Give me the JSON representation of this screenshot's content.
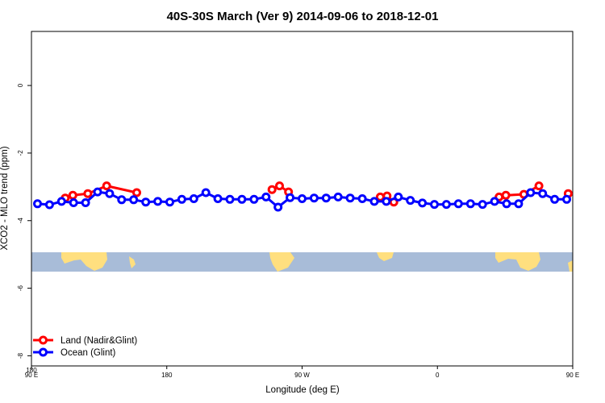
{
  "chart_data": {
    "type": "line",
    "title": "40S-30S March (Ver 9)   2014-09-06 to 2018-12-01",
    "xlabel": "Longitude (deg E)",
    "ylabel": "XCO2 - MLO trend (ppm)",
    "xlim": [
      0,
      360
    ],
    "ylim": [
      -8.3,
      1.6
    ],
    "x_ticks": [
      {
        "value": 0,
        "label": "90 E"
      },
      {
        "value": 90,
        "label": "180"
      },
      {
        "value": 180,
        "label": "90 W"
      },
      {
        "value": 270,
        "label": "0"
      },
      {
        "value": 360,
        "label": "90 E"
      }
    ],
    "x_ticks_2": [
      {
        "value": 0,
        "label": "180"
      }
    ],
    "y_ticks": [
      {
        "value": 0,
        "label": "0"
      },
      {
        "value": -2,
        "label": "-2"
      },
      {
        "value": -4,
        "label": "-4"
      },
      {
        "value": -6,
        "label": "-6"
      },
      {
        "value": -8,
        "label": "-8"
      }
    ],
    "grid": false,
    "legend_position": "bottom-left",
    "series": [
      {
        "name": "Land (Nadir&Glint)",
        "color": "#ff0000",
        "segments": [
          [
            [
              22.5,
              -3.33
            ],
            [
              27.5,
              -3.25
            ],
            [
              37.5,
              -3.2
            ],
            [
              50,
              -2.97
            ],
            [
              70,
              -3.17
            ]
          ],
          [
            [
              160,
              -3.08
            ],
            [
              165,
              -2.97
            ],
            [
              171,
              -3.15
            ]
          ],
          [
            [
              232,
              -3.3
            ],
            [
              236.5,
              -3.27
            ],
            [
              241,
              -3.45
            ]
          ],
          [
            [
              311,
              -3.3
            ],
            [
              315.5,
              -3.25
            ],
            [
              327.5,
              -3.22
            ],
            [
              337.5,
              -2.97
            ]
          ],
          [
            [
              357,
              -3.2
            ]
          ]
        ]
      },
      {
        "name": "Ocean (Glint)",
        "color": "#0000ff",
        "segments": [
          [
            [
              4,
              -3.5
            ],
            [
              12,
              -3.53
            ],
            [
              20,
              -3.43
            ],
            [
              28,
              -3.47
            ],
            [
              36,
              -3.47
            ],
            [
              44,
              -3.15
            ],
            [
              52,
              -3.2
            ],
            [
              60,
              -3.38
            ],
            [
              68,
              -3.38
            ],
            [
              76,
              -3.45
            ],
            [
              84,
              -3.43
            ],
            [
              92,
              -3.45
            ],
            [
              100,
              -3.37
            ],
            [
              108,
              -3.35
            ],
            [
              116,
              -3.17
            ],
            [
              124,
              -3.35
            ],
            [
              132,
              -3.37
            ],
            [
              140,
              -3.37
            ],
            [
              148,
              -3.37
            ],
            [
              156,
              -3.3
            ],
            [
              164,
              -3.6
            ],
            [
              172,
              -3.32
            ],
            [
              180,
              -3.35
            ],
            [
              188,
              -3.33
            ],
            [
              196,
              -3.33
            ],
            [
              204,
              -3.3
            ],
            [
              212,
              -3.33
            ],
            [
              220,
              -3.35
            ],
            [
              228,
              -3.43
            ],
            [
              236,
              -3.43
            ],
            [
              244,
              -3.3
            ],
            [
              252,
              -3.4
            ],
            [
              260,
              -3.48
            ],
            [
              268,
              -3.52
            ],
            [
              276,
              -3.52
            ],
            [
              284,
              -3.5
            ],
            [
              292,
              -3.5
            ],
            [
              300,
              -3.52
            ],
            [
              308,
              -3.43
            ],
            [
              316,
              -3.5
            ],
            [
              324,
              -3.5
            ],
            [
              332,
              -3.17
            ],
            [
              340,
              -3.2
            ],
            [
              348,
              -3.37
            ],
            [
              356,
              -3.37
            ]
          ]
        ]
      }
    ]
  }
}
